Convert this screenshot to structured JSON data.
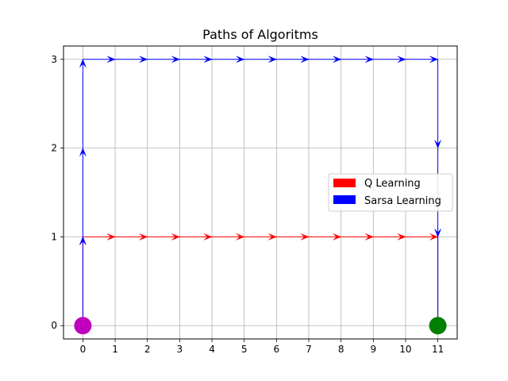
{
  "chart_data": {
    "type": "line",
    "title": "Paths of Algoritms",
    "xlabel": "",
    "ylabel": "",
    "xlim": [
      -0.6,
      11.6
    ],
    "ylim": [
      -0.15,
      3.15
    ],
    "xticks": [
      0,
      1,
      2,
      3,
      4,
      5,
      6,
      7,
      8,
      9,
      10,
      11
    ],
    "yticks": [
      0,
      1,
      2,
      3
    ],
    "grid": true,
    "legend_position": "center-right",
    "series": [
      {
        "name": "Q Learning",
        "color": "#ff0000",
        "path": [
          [
            0,
            0
          ],
          [
            0,
            1
          ],
          [
            1,
            1
          ],
          [
            2,
            1
          ],
          [
            3,
            1
          ],
          [
            4,
            1
          ],
          [
            5,
            1
          ],
          [
            6,
            1
          ],
          [
            7,
            1
          ],
          [
            8,
            1
          ],
          [
            9,
            1
          ],
          [
            10,
            1
          ],
          [
            11,
            1
          ],
          [
            11,
            0
          ]
        ]
      },
      {
        "name": "Sarsa Learning",
        "color": "#0000ff",
        "path": [
          [
            0,
            0
          ],
          [
            0,
            1
          ],
          [
            0,
            2
          ],
          [
            0,
            3
          ],
          [
            1,
            3
          ],
          [
            2,
            3
          ],
          [
            3,
            3
          ],
          [
            4,
            3
          ],
          [
            5,
            3
          ],
          [
            6,
            3
          ],
          [
            7,
            3
          ],
          [
            8,
            3
          ],
          [
            9,
            3
          ],
          [
            10,
            3
          ],
          [
            11,
            3
          ],
          [
            11,
            2
          ],
          [
            11,
            1
          ],
          [
            11,
            0
          ]
        ]
      }
    ],
    "markers": [
      {
        "name": "start",
        "x": 0,
        "y": 0,
        "color": "#bf00bf"
      },
      {
        "name": "goal",
        "x": 11,
        "y": 0,
        "color": "#008000"
      }
    ]
  }
}
